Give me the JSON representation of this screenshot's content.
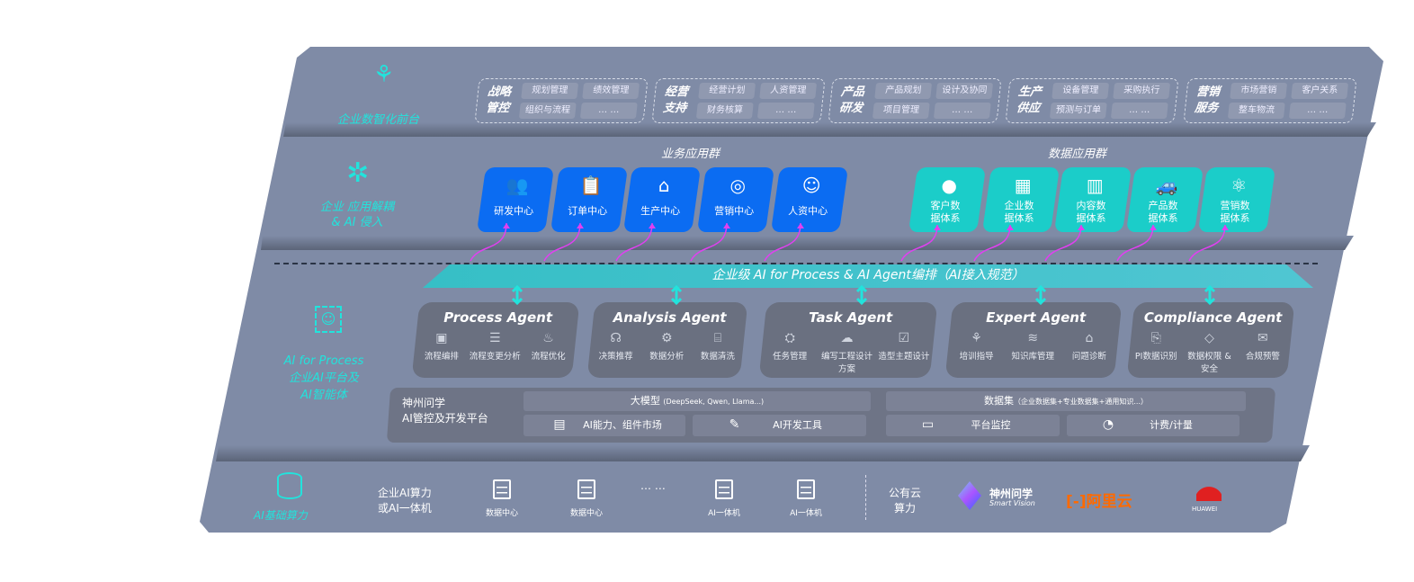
{
  "layers": {
    "frontend": {
      "label": "企业数智化前台",
      "icon": "brain-icon",
      "groups": [
        {
          "title": "战略管控",
          "items": [
            "规划管理",
            "绩效管理",
            "组织与流程",
            "… …"
          ]
        },
        {
          "title": "经营支持",
          "items": [
            "经营计划",
            "人资管理",
            "财务核算",
            "… …"
          ]
        },
        {
          "title": "产品研发",
          "items": [
            "产品规划",
            "设计及协同",
            "项目管理",
            "… …"
          ]
        },
        {
          "title": "生产供应",
          "items": [
            "设备管理",
            "采购执行",
            "预测与订单",
            "… …"
          ]
        },
        {
          "title": "营销服务",
          "items": [
            "市场营销",
            "客户关系",
            "整车物流",
            "… …"
          ]
        }
      ]
    },
    "apps": {
      "label": "企业 应用解耦 & AI 侵入",
      "icon": "molecule-icon",
      "business_title": "业务应用群",
      "business": [
        {
          "label": "研发中心",
          "icon": "team-icon"
        },
        {
          "label": "订单中心",
          "icon": "clipboard-icon"
        },
        {
          "label": "生产中心",
          "icon": "factory-icon"
        },
        {
          "label": "营销中心",
          "icon": "target-icon"
        },
        {
          "label": "人资中心",
          "icon": "people-icon"
        }
      ],
      "data_title": "数据应用群",
      "data": [
        {
          "label": "客户数据体系",
          "icon": "user-icon"
        },
        {
          "label": "企业数据体系",
          "icon": "building-icon"
        },
        {
          "label": "内容数据体系",
          "icon": "books-icon"
        },
        {
          "label": "产品数据体系",
          "icon": "car-icon"
        },
        {
          "label": "营销数据体系",
          "icon": "atom-icon"
        }
      ]
    },
    "ai": {
      "label1": "AI for Process",
      "label2": "企业AI平台及",
      "label3": "AI智能体",
      "icon": "face-scan-icon",
      "orchestration": "企业级 AI for Process & AI Agent编排（AI接入规范）",
      "agents": [
        {
          "title": "Process Agent",
          "features": [
            "流程编排",
            "流程变更分析",
            "流程优化"
          ]
        },
        {
          "title": "Analysis Agent",
          "features": [
            "决策推荐",
            "数据分析",
            "数据清洗"
          ]
        },
        {
          "title": "Task Agent",
          "features": [
            "任务管理",
            "编写工程设计方案",
            "造型主题设计"
          ]
        },
        {
          "title": "Expert Agent",
          "features": [
            "培训指导",
            "知识库管理",
            "问题诊断"
          ]
        },
        {
          "title": "Compliance Agent",
          "features": [
            "PI数据识别",
            "数据权限 & 安全",
            "合规预警"
          ]
        }
      ],
      "platform": {
        "name1": "神州问学",
        "name2": "AI管控及开发平台",
        "model_title": "大模型",
        "model_note": "(DeepSeek, Qwen, Llama...)",
        "dataset_title": "数据集",
        "dataset_note": "（企业数据集+专业数据集+通用知识...）",
        "tools": [
          "AI能力、组件市场",
          "AI开发工具",
          "平台监控",
          "计费/计量"
        ]
      }
    },
    "infra": {
      "label": "AI基础算力",
      "icon": "database-icon",
      "private_label1": "企业AI算力",
      "private_label2": "或AI一体机",
      "servers": [
        "数据中心",
        "数据中心",
        "AI一体机",
        "AI一体机"
      ],
      "ellipsis": "… …",
      "public_label1": "公有云",
      "public_label2": "算力",
      "vendors": {
        "smartvision": "神州问学",
        "smartvision_sub": "Smart Vision",
        "aliyun": "阿里云",
        "huawei": "HUAWEI"
      }
    }
  },
  "colors": {
    "panel": "#7f8ba6",
    "business": "#0b6cf2",
    "data": "#1bcdc9",
    "accent": "#22e3dc",
    "arrow": "#e040f0"
  }
}
